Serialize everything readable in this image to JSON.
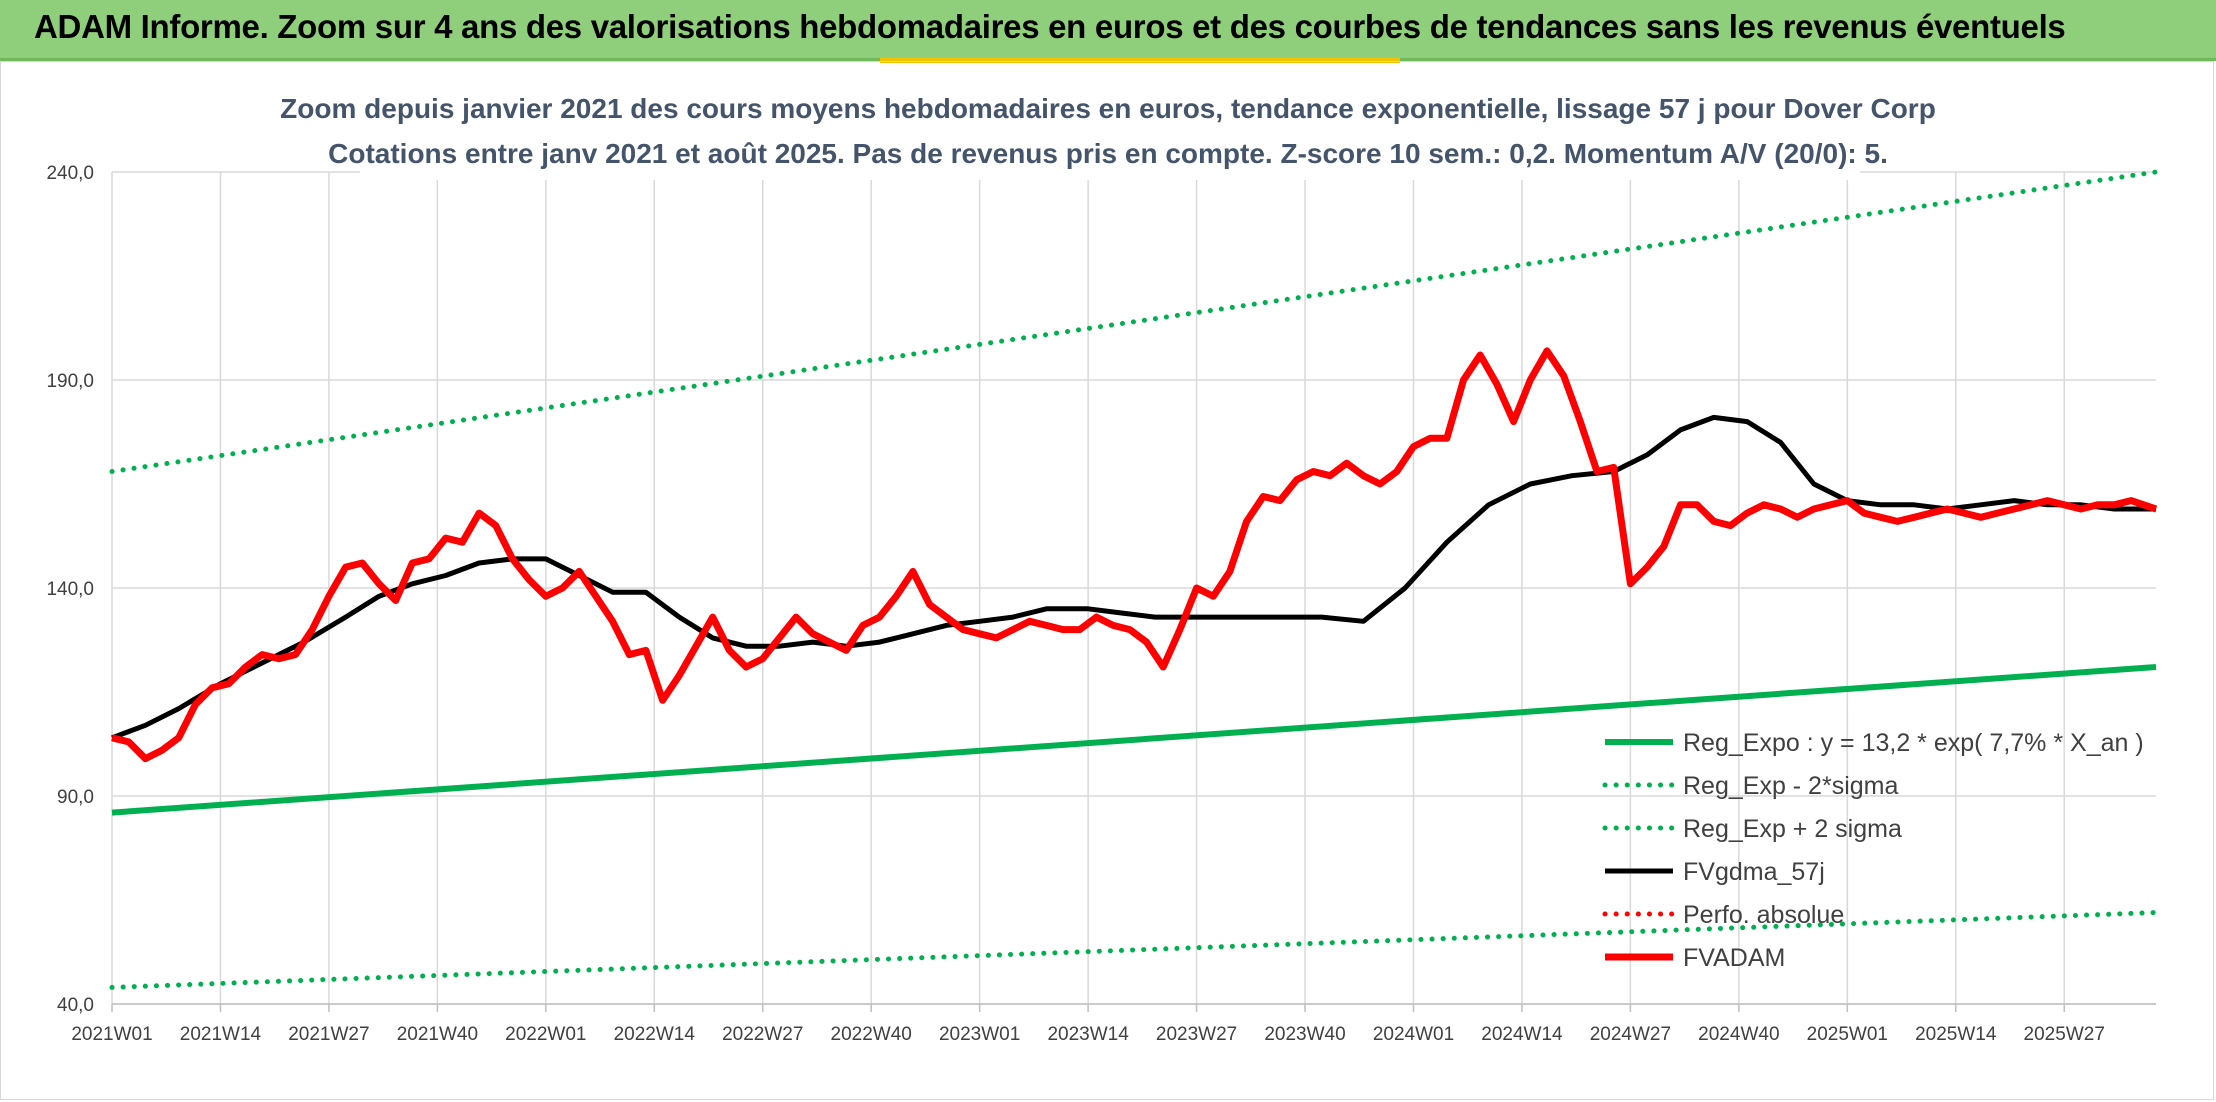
{
  "page": {
    "banner_title": "ADAM Informe. Zoom sur 4 ans des valorisations hebdomadaires en euros et des courbes de tendances sans les revenus éventuels"
  },
  "colors": {
    "banner": "#8fce7a",
    "trend_green": "#00b050",
    "price_red": "#ff0000",
    "smooth_black": "#000000",
    "grid": "#d9d9d9"
  },
  "chart_data": {
    "type": "line",
    "title": "Zoom depuis janvier 2021 des cours moyens hebdomadaires en euros, tendance exponentielle, lissage 57 j pour Dover Corp",
    "subtitle": "Cotations entre janv 2021 et août 2025. Pas de revenus pris en compte. Z-score 10 sem.: 0,2. Momentum A/V (20/0): 5.",
    "xlabel": "",
    "ylabel": "",
    "ylim": [
      40,
      240
    ],
    "yticks": [
      "40,0",
      "90,0",
      "140,0",
      "190,0",
      "240,0"
    ],
    "x_ticks": [
      "2021W01",
      "2021W14",
      "2021W27",
      "2021W40",
      "2022W01",
      "2022W14",
      "2022W27",
      "2022W40",
      "2023W01",
      "2023W14",
      "2023W27",
      "2023W40",
      "2024W01",
      "2024W14",
      "2024W27",
      "2024W40",
      "2025W01",
      "2025W14",
      "2025W27"
    ],
    "grid": true,
    "legend_position": "bottom-right",
    "x_index_range": [
      0,
      245
    ],
    "series": [
      {
        "name": "Reg_Expo : y = 13,2 * exp( 7,7% *  X_an )",
        "style": "solid",
        "color": "#00b050",
        "x": [
          0,
          245
        ],
        "y": [
          86,
          121
        ]
      },
      {
        "name": "Reg_Exp - 2*sigma",
        "style": "dotted",
        "color": "#00b050",
        "x": [
          0,
          245
        ],
        "y": [
          44,
          62
        ]
      },
      {
        "name": "Reg_Exp + 2 sigma",
        "style": "dotted",
        "color": "#00b050",
        "x": [
          0,
          245
        ],
        "y": [
          168,
          240
        ]
      },
      {
        "name": "FVgdma_57j",
        "style": "solid",
        "color": "#000000",
        "x": [
          0,
          4,
          8,
          13,
          18,
          23,
          28,
          32,
          36,
          40,
          44,
          48,
          52,
          56,
          60,
          64,
          68,
          72,
          76,
          80,
          84,
          88,
          92,
          96,
          100,
          104,
          108,
          112,
          117,
          121,
          125,
          130,
          135,
          140,
          145,
          150,
          155,
          160,
          165,
          170,
          175,
          180,
          184,
          188,
          192,
          196,
          200,
          204,
          208,
          212,
          216,
          220,
          224,
          228,
          232,
          236,
          240,
          245
        ],
        "y": [
          104,
          107,
          111,
          117,
          122,
          127,
          133,
          138,
          141,
          143,
          146,
          147,
          147,
          143,
          139,
          139,
          133,
          128,
          126,
          126,
          127,
          126,
          127,
          129,
          131,
          132,
          133,
          135,
          135,
          134,
          133,
          133,
          133,
          133,
          133,
          132,
          140,
          151,
          160,
          165,
          167,
          168,
          172,
          178,
          181,
          180,
          175,
          165,
          161,
          160,
          160,
          159,
          160,
          161,
          160,
          160,
          159,
          159
        ]
      },
      {
        "name": "Perfo. absolue",
        "style": "dotted",
        "color": "#ff0000",
        "x": [],
        "y": []
      },
      {
        "name": "FVADAM",
        "style": "solid",
        "color": "#ff0000",
        "x": [
          0,
          2,
          4,
          6,
          8,
          10,
          12,
          14,
          16,
          18,
          20,
          22,
          24,
          26,
          28,
          30,
          32,
          34,
          36,
          38,
          40,
          42,
          44,
          46,
          48,
          50,
          52,
          54,
          56,
          58,
          60,
          62,
          64,
          66,
          68,
          70,
          72,
          74,
          76,
          78,
          80,
          82,
          84,
          86,
          88,
          90,
          92,
          94,
          96,
          98,
          100,
          102,
          104,
          106,
          108,
          110,
          112,
          114,
          116,
          118,
          120,
          122,
          124,
          126,
          128,
          130,
          132,
          134,
          136,
          138,
          140,
          142,
          144,
          146,
          148,
          150,
          152,
          154,
          156,
          158,
          160,
          162,
          164,
          166,
          168,
          170,
          172,
          174,
          176,
          178,
          180,
          182,
          184,
          186,
          188,
          190,
          192,
          194,
          196,
          198,
          200,
          202,
          204,
          206,
          208,
          210,
          212,
          214,
          216,
          218,
          220,
          222,
          224,
          226,
          228,
          230,
          232,
          234,
          236,
          238,
          240,
          242,
          245
        ],
        "y": [
          104,
          103,
          99,
          101,
          104,
          112,
          116,
          117,
          121,
          124,
          123,
          124,
          130,
          138,
          145,
          146,
          141,
          137,
          146,
          147,
          152,
          151,
          158,
          155,
          147,
          142,
          138,
          140,
          144,
          138,
          132,
          124,
          125,
          113,
          119,
          126,
          133,
          125,
          121,
          123,
          128,
          133,
          129,
          127,
          125,
          131,
          133,
          138,
          144,
          136,
          133,
          130,
          129,
          128,
          130,
          132,
          131,
          130,
          130,
          133,
          131,
          130,
          127,
          121,
          130,
          140,
          138,
          144,
          156,
          162,
          161,
          166,
          168,
          167,
          170,
          167,
          165,
          168,
          174,
          176,
          176,
          190,
          196,
          189,
          180,
          190,
          197,
          191,
          180,
          168,
          169,
          141,
          145,
          150,
          160,
          160,
          156,
          155,
          158,
          160,
          159,
          157,
          159,
          160,
          161,
          158,
          157,
          156,
          157,
          158,
          159,
          158,
          157,
          158,
          159,
          160,
          161,
          160,
          159,
          160,
          160,
          161,
          159
        ]
      }
    ]
  }
}
